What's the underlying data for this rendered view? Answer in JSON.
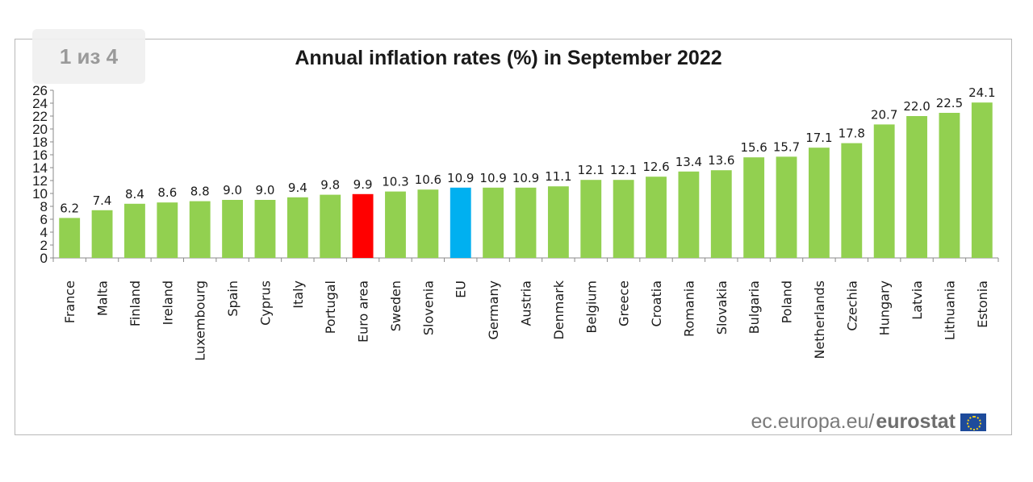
{
  "viewer": {
    "page_indicator": "1 из 4"
  },
  "source": {
    "domain": "ec.europa.eu/",
    "brand": "eurostat",
    "flag_icon": "eu-flag-icon"
  },
  "colors": {
    "default": "#92d050",
    "euro_area": "#ff0000",
    "eu": "#00b0f0"
  },
  "chart_data": {
    "type": "bar",
    "title": "Annual inflation rates (%) in September 2022",
    "xlabel": "",
    "ylabel": "",
    "ylim": [
      0,
      26
    ],
    "yticks": [
      0,
      2,
      4,
      6,
      8,
      10,
      12,
      14,
      16,
      18,
      20,
      22,
      24,
      26
    ],
    "grid": false,
    "categories": [
      "France",
      "Malta",
      "Finland",
      "Ireland",
      "Luxembourg",
      "Spain",
      "Cyprus",
      "Italy",
      "Portugal",
      "Euro area",
      "Sweden",
      "Slovenia",
      "EU",
      "Germany",
      "Austria",
      "Denmark",
      "Belgium",
      "Greece",
      "Croatia",
      "Romania",
      "Slovakia",
      "Bulgaria",
      "Poland",
      "Netherlands",
      "Czechia",
      "Hungary",
      "Latvia",
      "Lithuania",
      "Estonia"
    ],
    "values": [
      6.2,
      7.4,
      8.4,
      8.6,
      8.8,
      9.0,
      9.0,
      9.4,
      9.8,
      9.9,
      10.3,
      10.6,
      10.9,
      10.9,
      10.9,
      11.1,
      12.1,
      12.1,
      12.6,
      13.4,
      13.6,
      15.6,
      15.7,
      17.1,
      17.8,
      20.7,
      22.0,
      22.5,
      24.1
    ],
    "value_labels": [
      "6.2",
      "7.4",
      "8.4",
      "8.6",
      "8.8",
      "9.0",
      "9.0",
      "9.4",
      "9.8",
      "9.9",
      "10.3",
      "10.6",
      "10.9",
      "10.9",
      "10.9",
      "11.1",
      "12.1",
      "12.1",
      "12.6",
      "13.4",
      "13.6",
      "15.6",
      "15.7",
      "17.1",
      "17.8",
      "20.7",
      "22.0",
      "22.5",
      "24.1"
    ],
    "highlight": {
      "Euro area": "euro_area",
      "EU": "eu"
    }
  }
}
